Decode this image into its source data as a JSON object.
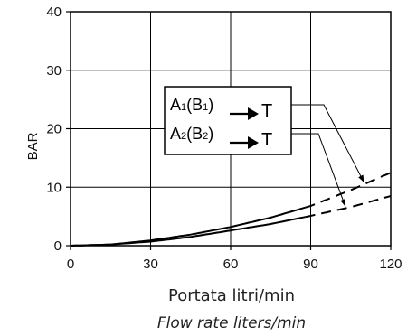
{
  "chart_data": {
    "type": "line",
    "xlabel": "Portata litri/min",
    "xlabel_translation": "Flow rate liters/min",
    "ylabel": "BAR",
    "xlim": [
      0,
      120
    ],
    "ylim": [
      0,
      40
    ],
    "x_ticks": [
      "0",
      "30",
      "60",
      "90",
      "120"
    ],
    "y_ticks": [
      "0",
      "10",
      "20",
      "30",
      "40"
    ],
    "grid": true,
    "series": [
      {
        "name": "A1(B1) → T",
        "name_main": "A",
        "name_sub": "1",
        "name_paren_main": "B",
        "name_paren_sub": "1",
        "target": "T",
        "x": [
          0,
          15,
          30,
          45,
          60,
          75,
          90,
          105,
          120
        ],
        "y": [
          0,
          0.2,
          0.9,
          1.9,
          3.2,
          4.8,
          6.8,
          9.5,
          12.5
        ],
        "solid_until_x": 88,
        "color": "#000000"
      },
      {
        "name": "A2(B2) → T",
        "name_main": "A",
        "name_sub": "2",
        "name_paren_main": "B",
        "name_paren_sub": "2",
        "target": "T",
        "x": [
          0,
          15,
          30,
          45,
          60,
          75,
          90,
          105,
          120
        ],
        "y": [
          0,
          0.2,
          0.7,
          1.5,
          2.6,
          3.7,
          5.1,
          6.6,
          8.5
        ],
        "solid_until_x": 88,
        "color": "#000000"
      }
    ]
  }
}
